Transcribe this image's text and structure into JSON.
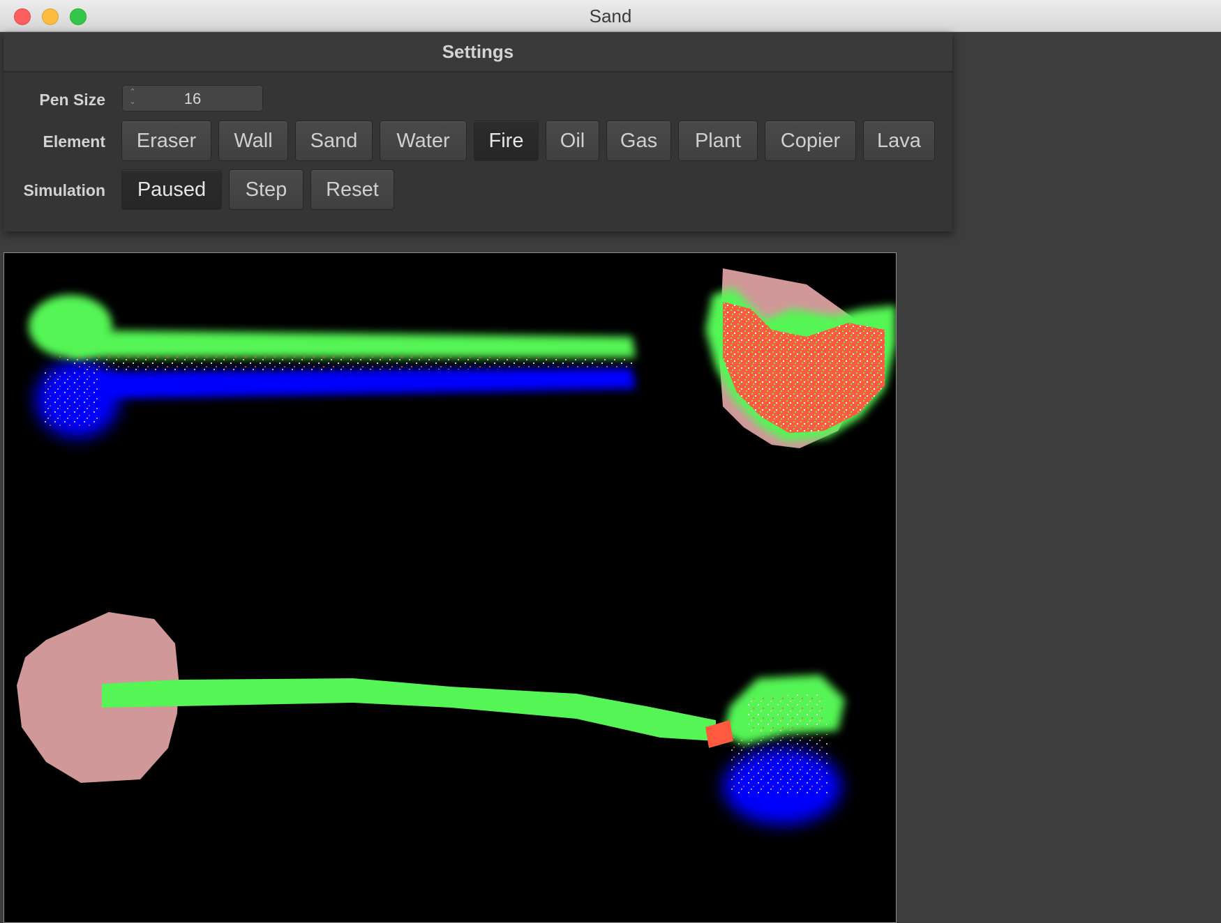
{
  "window": {
    "title": "Sand"
  },
  "settings": {
    "header": "Settings",
    "pen_size": {
      "label": "Pen Size",
      "value": "16"
    },
    "element": {
      "label": "Element",
      "buttons": [
        {
          "label": "Eraser"
        },
        {
          "label": "Wall"
        },
        {
          "label": "Sand"
        },
        {
          "label": "Water"
        },
        {
          "label": "Fire"
        },
        {
          "label": "Oil"
        },
        {
          "label": "Gas"
        },
        {
          "label": "Plant"
        },
        {
          "label": "Copier"
        },
        {
          "label": "Lava"
        }
      ],
      "selected": "Fire"
    },
    "simulation": {
      "label": "Simulation",
      "buttons": [
        {
          "label": "Paused"
        },
        {
          "label": "Step"
        },
        {
          "label": "Reset"
        }
      ],
      "active": "Paused"
    }
  },
  "canvas": {
    "colors": {
      "background": "#000000",
      "plant": "#55f555",
      "water": "#0000ff",
      "sand": "#d09898",
      "fire": "#ff5a40"
    }
  }
}
